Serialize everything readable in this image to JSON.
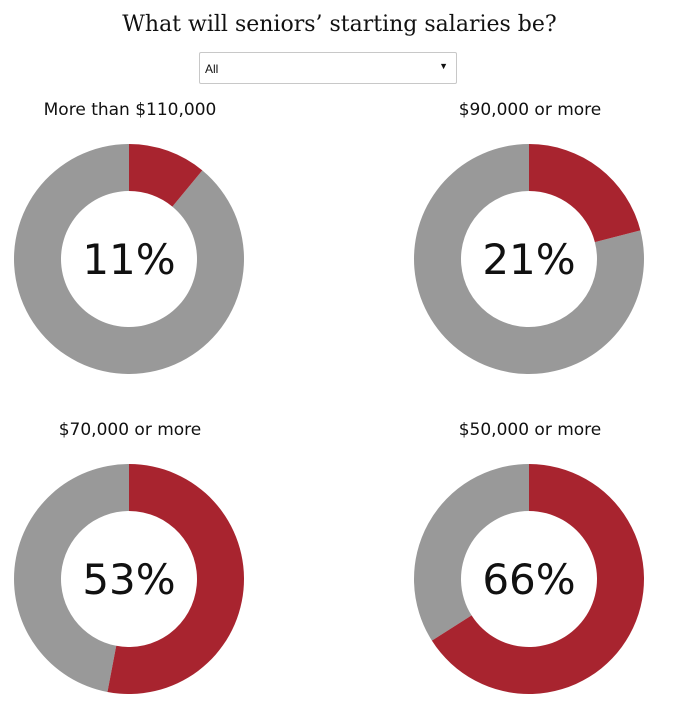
{
  "title": "What will seniors’ starting salaries be?",
  "filter": {
    "selected": "All"
  },
  "colors": {
    "share": "#a8242f",
    "remainder": "#999999"
  },
  "chart_data": [
    {
      "type": "pie",
      "title": "More than $110,000",
      "value": 11,
      "label": "11%"
    },
    {
      "type": "pie",
      "title": "$90,000 or more",
      "value": 21,
      "label": "21%"
    },
    {
      "type": "pie",
      "title": "$70,000 or more",
      "value": 53,
      "label": "53%"
    },
    {
      "type": "pie",
      "title": "$50,000 or more",
      "value": 66,
      "label": "66%"
    }
  ]
}
